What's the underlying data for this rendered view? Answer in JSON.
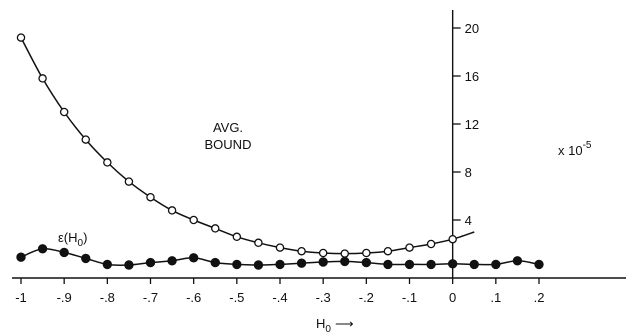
{
  "chart_data": {
    "type": "line",
    "title": "",
    "xlabel": "H",
    "xlabel_subscript": "0",
    "xlabel_arrow": "⟶",
    "ylabel": "",
    "y_multiplier_label": "x 10",
    "y_multiplier_exponent": "-5",
    "xlim": [
      -1.0,
      0.2
    ],
    "ylim": [
      0,
      20
    ],
    "x_ticks": [
      -1.0,
      -0.9,
      -0.8,
      -0.7,
      -0.6,
      -0.5,
      -0.4,
      -0.3,
      -0.2,
      -0.1,
      0.0,
      0.1,
      0.2
    ],
    "x_tick_labels": [
      "-1",
      "-.9",
      "-.8",
      "-.7",
      "-.6",
      "-.5",
      "-.4",
      "-.3",
      "-.2",
      "-.1",
      "0",
      ".1",
      ".2"
    ],
    "y_ticks": [
      4,
      8,
      12,
      16,
      20
    ],
    "y_tick_labels": [
      "4",
      "8",
      "12",
      "16",
      "20"
    ],
    "grid": false,
    "series": [
      {
        "name": "AVG. BOUND",
        "label_lines": [
          "AVG.",
          "BOUND"
        ],
        "marker": "open",
        "x": [
          -1.0,
          -0.95,
          -0.9,
          -0.85,
          -0.8,
          -0.75,
          -0.7,
          -0.65,
          -0.6,
          -0.55,
          -0.5,
          -0.45,
          -0.4,
          -0.35,
          -0.3,
          -0.25,
          -0.2,
          -0.15,
          -0.1,
          -0.05,
          0.0
        ],
        "y": [
          19.2,
          15.8,
          13.0,
          10.7,
          8.8,
          7.2,
          5.9,
          4.8,
          4.0,
          3.3,
          2.6,
          2.1,
          1.7,
          1.4,
          1.25,
          1.2,
          1.25,
          1.4,
          1.7,
          2.0,
          2.4
        ],
        "trend_end": [
          0.05,
          3.0
        ]
      },
      {
        "name": "ε(H",
        "label_subscript": "0",
        "label_suffix": ")",
        "marker": "filled",
        "x": [
          -1.0,
          -0.95,
          -0.9,
          -0.85,
          -0.8,
          -0.75,
          -0.7,
          -0.65,
          -0.6,
          -0.55,
          -0.5,
          -0.45,
          -0.4,
          -0.35,
          -0.3,
          -0.25,
          -0.2,
          -0.15,
          -0.1,
          -0.05,
          0.0,
          0.05,
          0.1,
          0.15,
          0.2
        ],
        "y": [
          0.9,
          1.6,
          1.3,
          0.8,
          0.3,
          0.25,
          0.45,
          0.6,
          0.85,
          0.45,
          0.3,
          0.25,
          0.3,
          0.4,
          0.5,
          0.55,
          0.45,
          0.3,
          0.3,
          0.3,
          0.35,
          0.3,
          0.3,
          0.6,
          0.3
        ]
      }
    ]
  }
}
